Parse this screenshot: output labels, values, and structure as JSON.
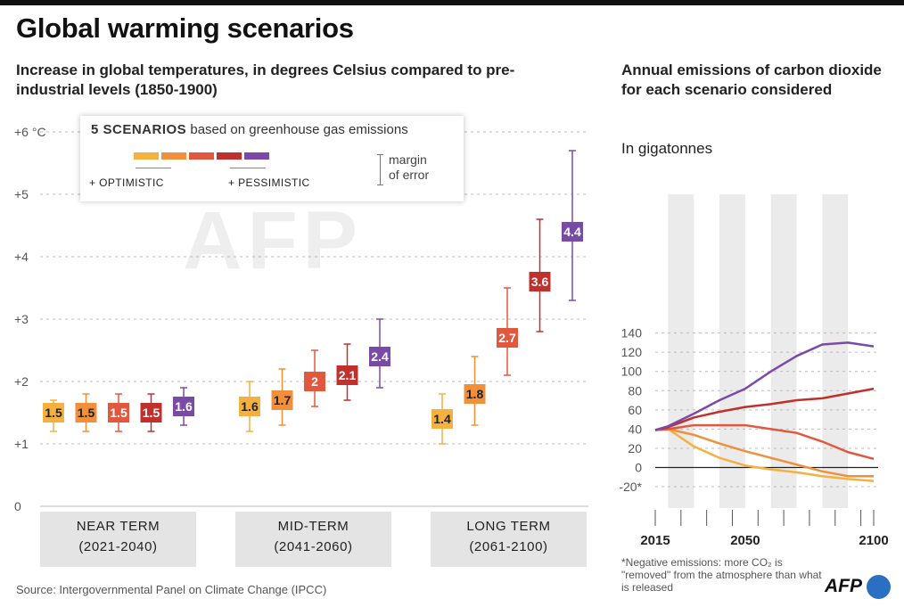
{
  "header": {
    "title": "Global warming scenarios",
    "subtitle": "Increase in global temperatures, in degrees Celsius compared to pre-industrial levels (1850-1900)"
  },
  "legend": {
    "heading_bold": "5 SCENARIOS",
    "heading_rest": "based on greenhouse gas emissions",
    "optimistic": "+ OPTIMISTIC",
    "pessimistic": "+ PESSIMISTIC",
    "margin_line1": "margin",
    "margin_line2": "of error"
  },
  "periods": [
    {
      "name": "NEAR TERM",
      "years": "(2021-2040)"
    },
    {
      "name": "MID-TERM",
      "years": "(2041-2060)"
    },
    {
      "name": "LONG TERM",
      "years": "(2061-2100)"
    }
  ],
  "right_panel": {
    "title": "Annual emissions of carbon dioxide for each scenario considered",
    "unit": "In gigatonnes"
  },
  "source": "Source: Intergovernmental Panel on Climate Change (IPCC)",
  "footnote": "*Negative emissions: more CO₂ is \"removed\" from the atmosphere than what is released",
  "logo": "AFP",
  "colors": {
    "scenarios": [
      "#f4b13f",
      "#f28f3b",
      "#e2583e",
      "#c0312e",
      "#7a4aa8"
    ],
    "label_text": [
      "#222222",
      "#222222",
      "#ffffff",
      "#ffffff",
      "#ffffff"
    ],
    "grid": "#bbbbbb",
    "axis_text": "#555555",
    "band": "#ebebeb"
  },
  "chart_data": [
    {
      "type": "scatter",
      "description_of_axis": "",
      "ylabel": "",
      "y_ticks": [
        "0",
        "+1",
        "+2",
        "+3",
        "+4",
        "+5",
        "+6 °C"
      ],
      "ylim": [
        0,
        6
      ],
      "scenario_count": 5,
      "groups": [
        {
          "period": "NEAR TERM",
          "values": [
            1.5,
            1.5,
            1.5,
            1.5,
            1.6
          ],
          "low": [
            1.2,
            1.2,
            1.2,
            1.2,
            1.3
          ],
          "high": [
            1.7,
            1.8,
            1.8,
            1.8,
            1.9
          ]
        },
        {
          "period": "MID-TERM",
          "values": [
            1.6,
            1.7,
            2.0,
            2.1,
            2.4
          ],
          "low": [
            1.2,
            1.3,
            1.6,
            1.7,
            1.9
          ],
          "high": [
            2.0,
            2.2,
            2.5,
            2.6,
            3.0
          ]
        },
        {
          "period": "LONG TERM",
          "values": [
            1.4,
            1.8,
            2.7,
            3.6,
            4.4
          ],
          "low": [
            1.0,
            1.3,
            2.1,
            2.8,
            3.3
          ],
          "high": [
            1.8,
            2.4,
            3.5,
            4.6,
            5.7
          ]
        }
      ],
      "value_labels": [
        [
          "1.5",
          "1.5",
          "1.5",
          "1.5",
          "1.6"
        ],
        [
          "1.6",
          "1.7",
          "2",
          "2.1",
          "2.4"
        ],
        [
          "1.4",
          "1.8",
          "2.7",
          "3.6",
          "4.4"
        ]
      ]
    },
    {
      "type": "line",
      "ylim": [
        -20,
        140
      ],
      "y_ticks": [
        "-20*",
        "0",
        "20",
        "40",
        "60",
        "80",
        "100",
        "120",
        "140"
      ],
      "x_tick_labels": [
        "2015",
        "2050",
        "2100"
      ],
      "x": [
        2015,
        2020,
        2030,
        2040,
        2050,
        2060,
        2070,
        2080,
        2090,
        2100
      ],
      "series": [
        {
          "values": [
            39,
            40,
            22,
            10,
            2,
            -2,
            -5,
            -9,
            -12,
            -14
          ]
        },
        {
          "values": [
            39,
            40,
            34,
            25,
            17,
            10,
            3,
            -4,
            -9,
            -9
          ]
        },
        {
          "values": [
            39,
            40,
            44,
            44,
            44,
            40,
            36,
            27,
            16,
            9
          ]
        },
        {
          "values": [
            39,
            42,
            52,
            58,
            63,
            66,
            70,
            72,
            77,
            82
          ]
        },
        {
          "values": [
            39,
            43,
            56,
            70,
            82,
            100,
            116,
            128,
            130,
            126
          ]
        }
      ],
      "shaded_decades": [
        [
          2020,
          2030
        ],
        [
          2040,
          2050
        ],
        [
          2060,
          2070
        ],
        [
          2080,
          2090
        ]
      ]
    }
  ]
}
